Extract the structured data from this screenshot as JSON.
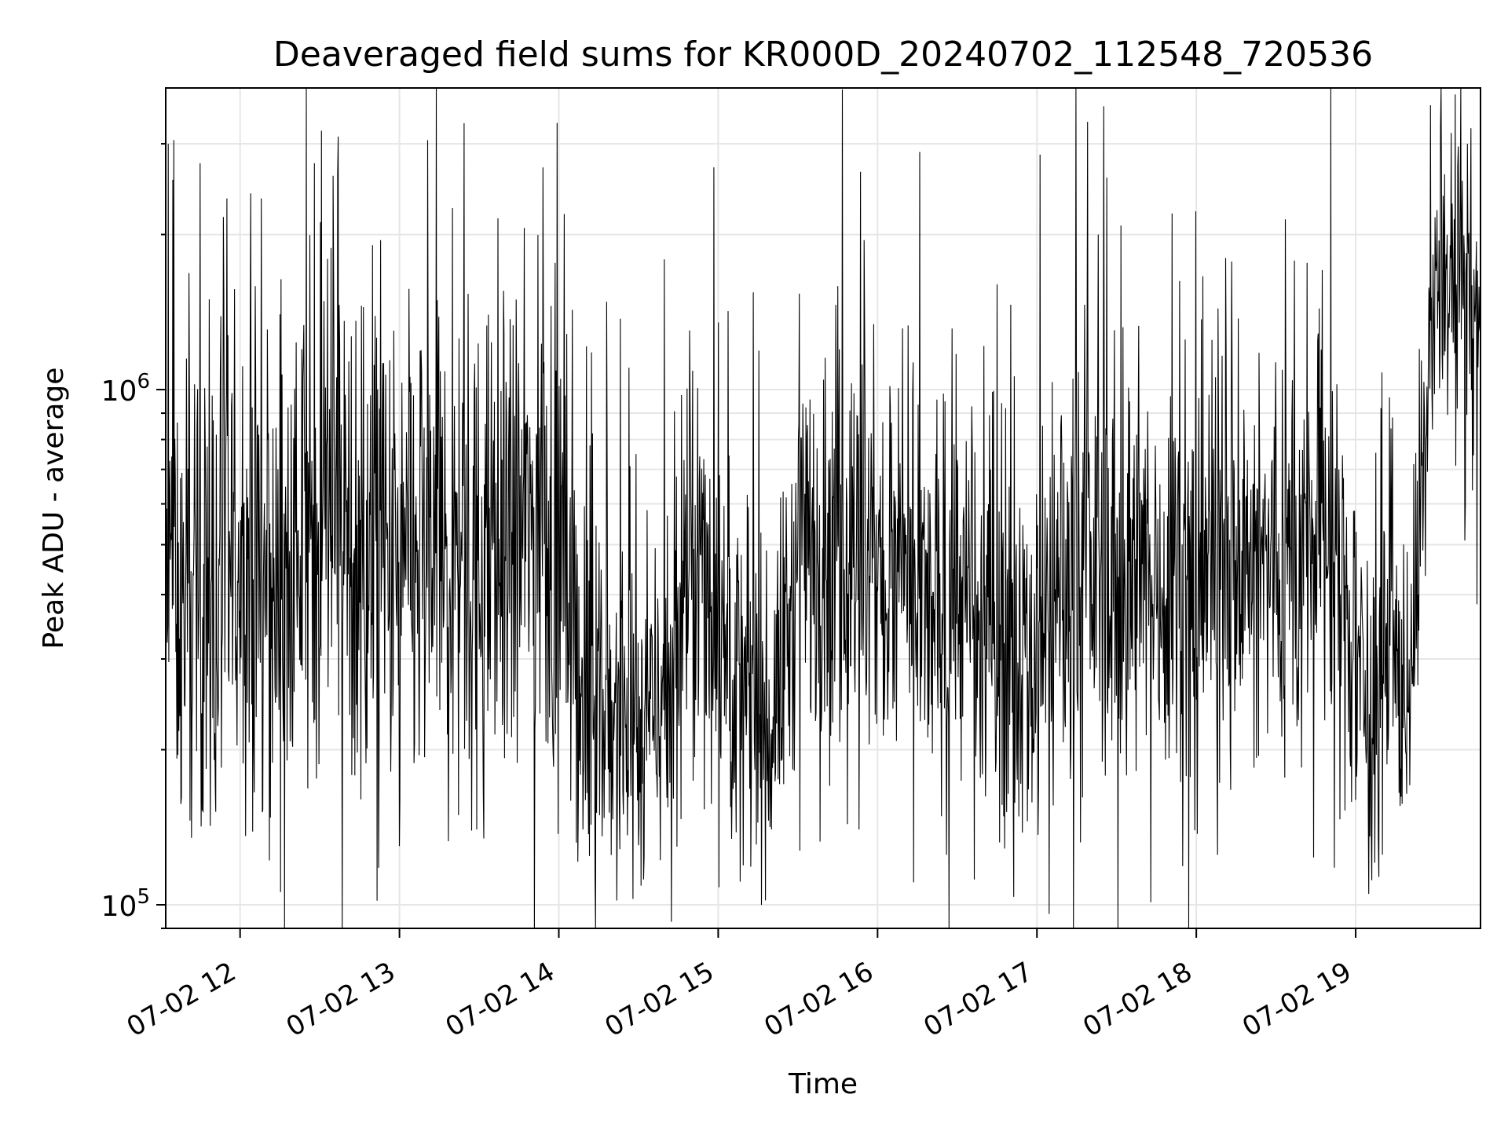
{
  "chart_data": {
    "type": "line",
    "title": "Deaveraged field sums for KR000D_20240702_112548_720536",
    "xlabel": "Time",
    "ylabel": "Peak ADU - average",
    "y_scale": "log",
    "ylim": [
      90000,
      3850000
    ],
    "xlim": [
      "2024-07-02 11:32",
      "2024-07-02 19:47"
    ],
    "grid": true,
    "line_color": "#000000",
    "x_ticks": [
      {
        "t": "2024-07-02 12:00",
        "label": "07-02 12"
      },
      {
        "t": "2024-07-02 13:00",
        "label": "07-02 13"
      },
      {
        "t": "2024-07-02 14:00",
        "label": "07-02 14"
      },
      {
        "t": "2024-07-02 15:00",
        "label": "07-02 15"
      },
      {
        "t": "2024-07-02 16:00",
        "label": "07-02 16"
      },
      {
        "t": "2024-07-02 17:00",
        "label": "07-02 17"
      },
      {
        "t": "2024-07-02 18:00",
        "label": "07-02 18"
      },
      {
        "t": "2024-07-02 19:00",
        "label": "07-02 19"
      }
    ],
    "y_ticks": [
      {
        "value": 100000,
        "base": "10",
        "exp": "5"
      },
      {
        "value": 1000000,
        "base": "10",
        "exp": "6"
      }
    ],
    "series": [
      {
        "x": [
          "2024-07-02 11:32",
          "2024-07-02 11:40",
          "2024-07-02 11:50",
          "2024-07-02 12:00",
          "2024-07-02 12:10",
          "2024-07-02 12:20",
          "2024-07-02 12:30",
          "2024-07-02 12:40",
          "2024-07-02 12:50",
          "2024-07-02 13:00",
          "2024-07-02 13:10",
          "2024-07-02 13:20",
          "2024-07-02 13:30",
          "2024-07-02 13:40",
          "2024-07-02 13:50",
          "2024-07-02 14:00",
          "2024-07-02 14:10",
          "2024-07-02 14:20",
          "2024-07-02 14:30",
          "2024-07-02 14:40",
          "2024-07-02 14:50",
          "2024-07-02 15:00",
          "2024-07-02 15:10",
          "2024-07-02 15:20",
          "2024-07-02 15:30",
          "2024-07-02 15:40",
          "2024-07-02 15:50",
          "2024-07-02 16:00",
          "2024-07-02 16:10",
          "2024-07-02 16:20",
          "2024-07-02 16:30",
          "2024-07-02 16:40",
          "2024-07-02 16:50",
          "2024-07-02 17:00",
          "2024-07-02 17:10",
          "2024-07-02 17:20",
          "2024-07-02 17:30",
          "2024-07-02 17:40",
          "2024-07-02 17:50",
          "2024-07-02 18:00",
          "2024-07-02 18:10",
          "2024-07-02 18:20",
          "2024-07-02 18:30",
          "2024-07-02 18:40",
          "2024-07-02 18:50",
          "2024-07-02 19:00",
          "2024-07-02 19:10",
          "2024-07-02 19:20",
          "2024-07-02 19:30",
          "2024-07-02 19:40",
          "2024-07-02 19:47"
        ],
        "y": [
          420000,
          350000,
          400000,
          480000,
          380000,
          450000,
          600000,
          560000,
          430000,
          420000,
          470000,
          500000,
          450000,
          480000,
          550000,
          500000,
          260000,
          230000,
          210000,
          250000,
          450000,
          400000,
          240000,
          220000,
          450000,
          500000,
          480000,
          420000,
          400000,
          350000,
          420000,
          300000,
          350000,
          280000,
          420000,
          450000,
          430000,
          410000,
          450000,
          420000,
          500000,
          430000,
          460000,
          480000,
          520000,
          300000,
          260000,
          280000,
          1400000,
          1600000,
          1200000
        ],
        "noise_span": [
          0.55,
          0.55,
          0.6,
          0.65,
          0.65,
          0.6,
          0.65,
          0.7,
          0.7,
          0.7,
          0.7,
          0.65,
          0.65,
          0.65,
          0.65,
          0.6,
          0.5,
          0.45,
          0.4,
          0.5,
          0.55,
          0.55,
          0.45,
          0.4,
          0.55,
          0.6,
          0.6,
          0.55,
          0.55,
          0.5,
          0.5,
          0.5,
          0.5,
          0.5,
          0.55,
          0.55,
          0.55,
          0.55,
          0.55,
          0.55,
          0.55,
          0.55,
          0.55,
          0.55,
          0.55,
          0.55,
          0.45,
          0.45,
          0.4,
          0.4,
          0.4
        ],
        "spikes": [
          {
            "t": "2024-07-02 11:33",
            "value": 3000000
          },
          {
            "t": "2024-07-02 11:35",
            "value": 3050000
          },
          {
            "t": "2024-07-02 11:45",
            "value": 2750000
          },
          {
            "t": "2024-07-02 11:55",
            "value": 2350000
          },
          {
            "t": "2024-07-02 12:08",
            "value": 2350000
          },
          {
            "t": "2024-07-02 12:28",
            "value": 2750000
          },
          {
            "t": "2024-07-02 12:35",
            "value": 2600000
          },
          {
            "t": "2024-07-02 12:53",
            "value": 1950000
          },
          {
            "t": "2024-07-02 13:00",
            "value": 130000
          },
          {
            "t": "2024-07-02 13:20",
            "value": 2250000
          },
          {
            "t": "2024-07-02 13:29",
            "value": 140000
          },
          {
            "t": "2024-07-02 13:37",
            "value": 2150000
          },
          {
            "t": "2024-07-02 13:54",
            "value": 2700000
          },
          {
            "t": "2024-07-02 14:09",
            "value": 140000
          },
          {
            "t": "2024-07-02 15:00",
            "value": 1350000
          },
          {
            "t": "2024-07-02 15:20",
            "value": 140000
          },
          {
            "t": "2024-07-02 15:53",
            "value": 140000
          },
          {
            "t": "2024-07-02 15:55",
            "value": 1950000
          },
          {
            "t": "2024-07-02 16:26",
            "value": 125000
          },
          {
            "t": "2024-07-02 16:45",
            "value": 1600000
          },
          {
            "t": "2024-07-02 17:23",
            "value": 2000000
          },
          {
            "t": "2024-07-02 18:08",
            "value": 125000
          },
          {
            "t": "2024-07-02 18:11",
            "value": 1800000
          },
          {
            "t": "2024-07-02 18:52",
            "value": 118000
          },
          {
            "t": "2024-07-02 19:05",
            "value": 105000
          },
          {
            "t": "2024-07-02 19:32",
            "value": 3250000
          },
          {
            "t": "2024-07-02 19:36",
            "value": 3150000
          },
          {
            "t": "2024-07-02 19:42",
            "value": 3000000
          }
        ]
      }
    ]
  }
}
